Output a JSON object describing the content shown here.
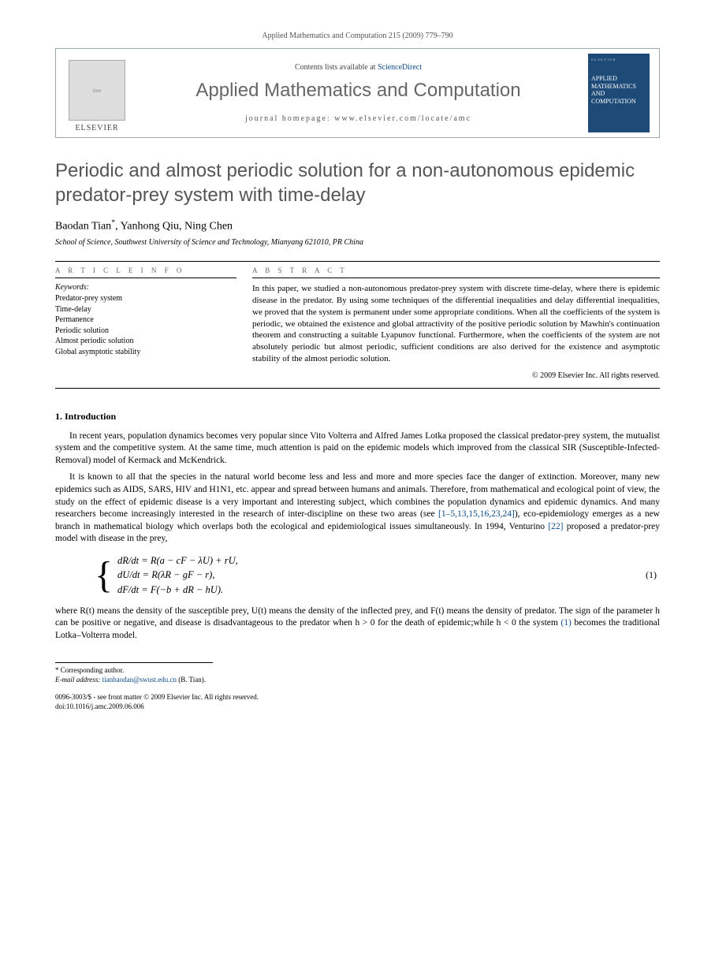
{
  "runningHead": "Applied Mathematics and Computation 215 (2009) 779–790",
  "header": {
    "contentsLine_pre": "Contents lists available at ",
    "contentsLine_link": "ScienceDirect",
    "journalTitle": "Applied Mathematics and Computation",
    "homepageLine": "journal homepage: www.elsevier.com/locate/amc",
    "elsevierLabel": "ELSEVIER",
    "treePlaceholder": "tree",
    "coverBrand": "ELSEVIER",
    "coverTitle": "APPLIED MATHEMATICS AND COMPUTATION"
  },
  "article": {
    "title": "Periodic and almost periodic solution for a non-autonomous epidemic predator-prey system with time-delay",
    "author1": "Baodan Tian",
    "author1_mark": "*",
    "author2": ", Yanhong Qiu, Ning Chen",
    "affiliation": "School of Science, Southwest University of Science and Technology, Mianyang 621010, PR China"
  },
  "labels": {
    "articleInfo": "A R T I C L E   I N F O",
    "abstract": "A B S T R A C T",
    "keywordsTitle": "Keywords:"
  },
  "keywords": [
    "Predator-prey system",
    "Time-delay",
    "Permanence",
    "Periodic solution",
    "Almost periodic solution",
    "Global asymptotic stability"
  ],
  "abstractText": "In this paper, we studied a non-autonomous predator-prey system with discrete time-delay, where there is epidemic disease in the predator. By using some techniques of the differential inequalities and delay differential inequalities, we proved that the system is permanent under some appropriate conditions. When all the coefficients of the system is periodic, we obtained the existence and global attractivity of the positive periodic solution by Mawhin's continuation theorem and constructing a suitable Lyapunov functional. Furthermore, when the coefficients of the system are not absolutely periodic but almost periodic, sufficient conditions are also derived for the existence and asymptotic stability of the almost periodic solution.",
  "copyright": "© 2009 Elsevier Inc. All rights reserved.",
  "introHeading": "1. Introduction",
  "para1": "In recent years, population dynamics becomes very popular since Vito Volterra and Alfred James Lotka proposed the classical predator-prey system, the mutualist system and the competitive system. At the same time, much attention is paid on the epidemic models which improved from the classical SIR (Susceptible-Infected-Removal) model of Kermack and McKendrick.",
  "para2_a": "It is known to all that the species in the natural world become less and less and more and more species face the danger of extinction. Moreover, many new epidemics such as AIDS, SARS, HIV and H1N1, etc. appear and spread between humans and animals. Therefore, from mathematical and ecological point of view, the study on the effect of epidemic disease is a very important and interesting subject, which combines the population dynamics and epidemic dynamics. And many researchers become increasingly interested in the research of inter-discipline on these two areas (see ",
  "para2_ref": "[1–5,13,15,16,23,24]",
  "para2_b": "), eco-epidemiology emerges as a new branch in mathematical biology which overlaps both the ecological and epidemiological issues simultaneously. In 1994, Venturino ",
  "para2_ref2": "[22]",
  "para2_c": " proposed a predator-prey model with disease in the prey,",
  "eq": {
    "l1": "dR/dt = R(a − cF − λU) + rU,",
    "l2": "dU/dt = R(λR − gF − r),",
    "l3": "dF/dt = F(−b + dR − hU).",
    "num": "(1)"
  },
  "para3_a": "where R(t) means the density of the susceptible prey, U(t) means the density of the inflected prey, and F(t) means the density of predator. The sign of the parameter h can be positive or negative, and disease is disadvantageous to the predator when h > 0 for the death of epidemic;while h < 0 the system ",
  "para3_ref": "(1)",
  "para3_b": " becomes the traditional Lotka–Volterra model.",
  "footnote": {
    "corr": "* Corresponding author.",
    "emailLabel": "E-mail address: ",
    "email": "tianbaodan@swust.edu.cn",
    "emailTrail": " (B. Tian)."
  },
  "footer": {
    "line1": "0096-3003/$ - see front matter © 2009 Elsevier Inc. All rights reserved.",
    "line2": "doi:10.1016/j.amc.2009.06.006"
  },
  "colors": {
    "textMuted": "#555555",
    "link": "#0a4a8a",
    "coverBg": "#1d4a76",
    "borderGray": "#99aaaa"
  },
  "fontSizes": {
    "runningHead": 10,
    "journalTitle": 24,
    "articleTitle": 24,
    "authors": 14,
    "affiliation": 10,
    "body": 11.5,
    "abstract": 11,
    "secLabel": 9,
    "keywords": 10,
    "footnotes": 9
  }
}
